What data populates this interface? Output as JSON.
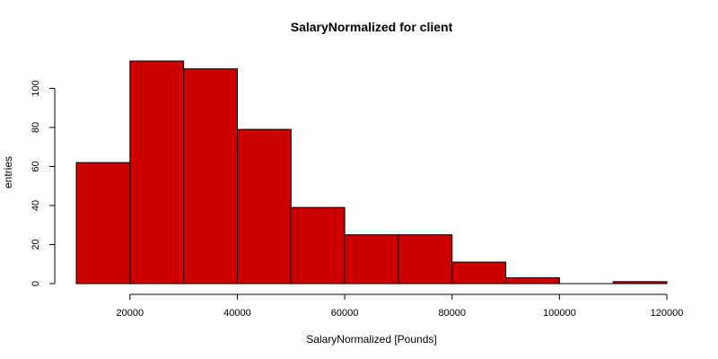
{
  "chart_data": {
    "type": "bar",
    "title": "SalaryNormalized for client",
    "xlabel": "SalaryNormalized [Pounds]",
    "ylabel": "entries",
    "bins": [
      {
        "x0": 10000,
        "x1": 20000,
        "count": 62
      },
      {
        "x0": 20000,
        "x1": 30000,
        "count": 114
      },
      {
        "x0": 30000,
        "x1": 40000,
        "count": 110
      },
      {
        "x0": 40000,
        "x1": 50000,
        "count": 79
      },
      {
        "x0": 50000,
        "x1": 60000,
        "count": 39
      },
      {
        "x0": 60000,
        "x1": 70000,
        "count": 25
      },
      {
        "x0": 70000,
        "x1": 80000,
        "count": 25
      },
      {
        "x0": 80000,
        "x1": 90000,
        "count": 11
      },
      {
        "x0": 90000,
        "x1": 100000,
        "count": 3
      },
      {
        "x0": 100000,
        "x1": 110000,
        "count": 0
      },
      {
        "x0": 110000,
        "x1": 120000,
        "count": 1
      }
    ],
    "xlim": [
      10000,
      120000
    ],
    "ylim": [
      0,
      114
    ],
    "xticks": [
      20000,
      40000,
      60000,
      80000,
      100000,
      120000
    ],
    "yticks": [
      0,
      20,
      40,
      60,
      80,
      100
    ],
    "bar_color": "#cc0000",
    "grid": false,
    "legend": "none"
  }
}
